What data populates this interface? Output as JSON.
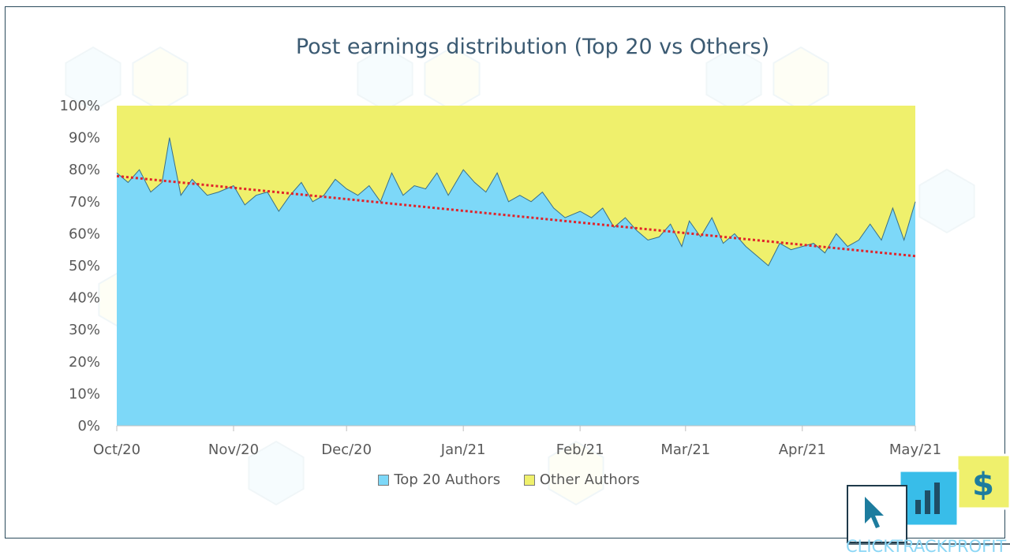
{
  "chart_data": {
    "type": "area",
    "stacked": true,
    "normalized_100_percent": true,
    "title": "Post earnings distribution (Top 20 vs Others)",
    "xlabel": "",
    "ylabel": "",
    "ylim": [
      0,
      100
    ],
    "y_ticks": [
      "0%",
      "10%",
      "20%",
      "30%",
      "40%",
      "50%",
      "60%",
      "70%",
      "80%",
      "90%",
      "100%"
    ],
    "x_ticks": [
      "Oct/20",
      "Nov/20",
      "Dec/20",
      "Jan/21",
      "Feb/21",
      "Mar/21",
      "Apr/21",
      "May/21"
    ],
    "x_range": [
      "2020-10-01",
      "2021-05-01"
    ],
    "legend_position": "bottom",
    "series": [
      {
        "name": "Top 20 Authors",
        "color": "#7dd8f8",
        "x": [
          "2020-10-01",
          "2020-10-04",
          "2020-10-07",
          "2020-10-10",
          "2020-10-13",
          "2020-10-15",
          "2020-10-18",
          "2020-10-21",
          "2020-10-25",
          "2020-10-28",
          "2020-11-01",
          "2020-11-04",
          "2020-11-07",
          "2020-11-10",
          "2020-11-13",
          "2020-11-16",
          "2020-11-19",
          "2020-11-22",
          "2020-11-25",
          "2020-11-28",
          "2020-12-01",
          "2020-12-04",
          "2020-12-07",
          "2020-12-10",
          "2020-12-13",
          "2020-12-16",
          "2020-12-19",
          "2020-12-22",
          "2020-12-25",
          "2020-12-28",
          "2021-01-01",
          "2021-01-04",
          "2021-01-07",
          "2021-01-10",
          "2021-01-13",
          "2021-01-16",
          "2021-01-19",
          "2021-01-22",
          "2021-01-25",
          "2021-01-28",
          "2021-02-01",
          "2021-02-04",
          "2021-02-07",
          "2021-02-10",
          "2021-02-13",
          "2021-02-16",
          "2021-02-19",
          "2021-02-22",
          "2021-02-25",
          "2021-02-28",
          "2021-03-02",
          "2021-03-05",
          "2021-03-08",
          "2021-03-11",
          "2021-03-14",
          "2021-03-17",
          "2021-03-20",
          "2021-03-23",
          "2021-03-26",
          "2021-03-29",
          "2021-04-01",
          "2021-04-04",
          "2021-04-07",
          "2021-04-10",
          "2021-04-13",
          "2021-04-16",
          "2021-04-19",
          "2021-04-22",
          "2021-04-25",
          "2021-04-28",
          "2021-05-01"
        ],
        "values": [
          79,
          76,
          80,
          73,
          76,
          90,
          72,
          77,
          72,
          73,
          75,
          69,
          72,
          73,
          67,
          72,
          76,
          70,
          72,
          77,
          74,
          72,
          75,
          70,
          79,
          72,
          75,
          74,
          79,
          72,
          80,
          76,
          73,
          79,
          70,
          72,
          70,
          73,
          68,
          65,
          67,
          65,
          68,
          62,
          65,
          61,
          58,
          59,
          63,
          56,
          64,
          59,
          65,
          57,
          60,
          56,
          53,
          50,
          57,
          55,
          56,
          57,
          54,
          60,
          56,
          58,
          63,
          58,
          68,
          58,
          70
        ]
      },
      {
        "name": "Other Authors",
        "color": "#eff06c",
        "x": [
          "2020-10-01",
          "2020-10-04",
          "2020-10-07",
          "2020-10-10",
          "2020-10-13",
          "2020-10-15",
          "2020-10-18",
          "2020-10-21",
          "2020-10-25",
          "2020-10-28",
          "2020-11-01",
          "2020-11-04",
          "2020-11-07",
          "2020-11-10",
          "2020-11-13",
          "2020-11-16",
          "2020-11-19",
          "2020-11-22",
          "2020-11-25",
          "2020-11-28",
          "2020-12-01",
          "2020-12-04",
          "2020-12-07",
          "2020-12-10",
          "2020-12-13",
          "2020-12-16",
          "2020-12-19",
          "2020-12-22",
          "2020-12-25",
          "2020-12-28",
          "2021-01-01",
          "2021-01-04",
          "2021-01-07",
          "2021-01-10",
          "2021-01-13",
          "2021-01-16",
          "2021-01-19",
          "2021-01-22",
          "2021-01-25",
          "2021-01-28",
          "2021-02-01",
          "2021-02-04",
          "2021-02-07",
          "2021-02-10",
          "2021-02-13",
          "2021-02-16",
          "2021-02-19",
          "2021-02-22",
          "2021-02-25",
          "2021-02-28",
          "2021-03-02",
          "2021-03-05",
          "2021-03-08",
          "2021-03-11",
          "2021-03-14",
          "2021-03-17",
          "2021-03-20",
          "2021-03-23",
          "2021-03-26",
          "2021-03-29",
          "2021-04-01",
          "2021-04-04",
          "2021-04-07",
          "2021-04-10",
          "2021-04-13",
          "2021-04-16",
          "2021-04-19",
          "2021-04-22",
          "2021-04-25",
          "2021-04-28",
          "2021-05-01"
        ],
        "values": [
          21,
          24,
          20,
          27,
          24,
          10,
          28,
          23,
          28,
          27,
          25,
          31,
          28,
          27,
          33,
          28,
          24,
          30,
          28,
          23,
          26,
          28,
          25,
          30,
          21,
          28,
          25,
          26,
          21,
          28,
          20,
          24,
          27,
          21,
          30,
          28,
          30,
          27,
          32,
          35,
          33,
          35,
          32,
          38,
          35,
          39,
          42,
          41,
          37,
          44,
          36,
          41,
          35,
          43,
          40,
          44,
          47,
          50,
          43,
          45,
          44,
          43,
          46,
          40,
          44,
          42,
          37,
          42,
          32,
          42,
          30
        ]
      }
    ],
    "trendline": {
      "series": "Top 20 Authors",
      "type": "linear",
      "color": "#e0242b",
      "style": "dotted",
      "start": {
        "x": "2020-10-01",
        "y": 78
      },
      "end": {
        "x": "2021-05-01",
        "y": 53
      }
    }
  },
  "logo": {
    "text_part1": "CLICKTRACK",
    "text_part2": "PROFIT",
    "dollar_symbol": "$"
  },
  "colors": {
    "title": "#3b5a72",
    "top20": "#7dd8f8",
    "others": "#eff06c",
    "trend": "#e0242b"
  }
}
